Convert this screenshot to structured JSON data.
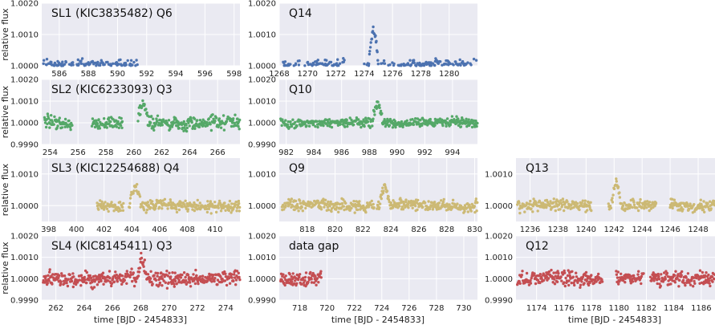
{
  "chart_data": {
    "type": "scatter",
    "x_label": "time [BJD - 2454833]",
    "y_label": "relative flux",
    "grid": true,
    "colors": {
      "SL1": "#4c72b0",
      "SL2": "#55a868",
      "SL3": "#ccb974",
      "SL4": "#c44e52",
      "background": "#eaeaf2"
    },
    "rows": [
      {
        "id": "SL1",
        "ylim": [
          1.0,
          1.002
        ],
        "yticks": [
          "1.0000",
          "1.0010",
          "1.0020"
        ],
        "panels": [
          {
            "title": "SL1 (KIC3835482) Q6",
            "xlim": [
              584.8,
              598.4
            ],
            "xticks": [
              586,
              588,
              590,
              592,
              594,
              596,
              598
            ],
            "segments": [
              [
                584.9,
                591.5
              ]
            ],
            "events": [
              [
                591.4,
                592.5,
                1.001
              ]
            ],
            "noise": 0.00011,
            "seed": 11
          },
          {
            "title": "Q14",
            "xlim": [
              1268,
              1282
            ],
            "xticks": [
              1268,
              1270,
              1272,
              1274,
              1276,
              1278,
              1280
            ],
            "segments": [
              [
                1268.2,
                1272.6
              ],
              [
                1274.0,
                1282.0
              ]
            ],
            "events": [
              [
                1274.3,
                1275.2,
                0.0011
              ]
            ],
            "noise": 0.00011,
            "seed": 12
          }
        ]
      },
      {
        "id": "SL2",
        "ylim": [
          0.999,
          1.002
        ],
        "yticks": [
          "0.9990",
          "1.0000",
          "1.0010",
          "1.0020"
        ],
        "panels": [
          {
            "title": "SL2 (KIC6233093) Q3",
            "xlim": [
              253.4,
              267.6
            ],
            "xticks": [
              254,
              256,
              258,
              260,
              262,
              264,
              266
            ],
            "segments": [
              [
                253.6,
                255.6
              ],
              [
                257.0,
                259.2
              ],
              [
                260.3,
                267.6
              ]
            ],
            "events": [
              [
                260.3,
                261.2,
                0.0008
              ]
            ],
            "noise": 0.0002,
            "seed": 21
          },
          {
            "title": "Q10",
            "xlim": [
              981.5,
              995.8
            ],
            "xticks": [
              982,
              984,
              986,
              988,
              990,
              992,
              994
            ],
            "segments": [
              [
                981.6,
                995.8
              ]
            ],
            "events": [
              [
                988.2,
                989.2,
                0.0009
              ]
            ],
            "noise": 0.00013,
            "seed": 22
          }
        ]
      },
      {
        "id": "SL3",
        "ylim": [
          0.9995,
          1.0015
        ],
        "yticks": [
          "1.0000",
          "1.0010"
        ],
        "panels": [
          {
            "title": "SL3 (KIC12254688) Q4",
            "xlim": [
              397.5,
              411.8
            ],
            "xticks": [
              398,
              400,
              402,
              404,
              406,
              408,
              410
            ],
            "segments": [
              [
                401.5,
                403.4
              ],
              [
                403.8,
                411.8
              ]
            ],
            "events": [
              [
                403.8,
                404.9,
                0.0006
              ]
            ],
            "noise": 0.00011,
            "seed": 31
          },
          {
            "title": "Q9",
            "xlim": [
              816,
              830.2
            ],
            "xticks": [
              818,
              820,
              822,
              824,
              826,
              828,
              830
            ],
            "segments": [
              [
                816.2,
                822.8
              ],
              [
                823.0,
                830.2
              ]
            ],
            "events": [
              [
                823.2,
                824.1,
                0.0006
              ]
            ],
            "noise": 0.00011,
            "seed": 32
          },
          {
            "title": "Q13",
            "xlim": [
              1235,
              1249.2
            ],
            "xticks": [
              1236,
              1238,
              1240,
              1242,
              1244,
              1246,
              1248
            ],
            "segments": [
              [
                1235.1,
                1240.4
              ],
              [
                1241.6,
                1245.0
              ],
              [
                1246.0,
                1249.2
              ]
            ],
            "events": [
              [
                1241.8,
                1242.7,
                0.0007
              ]
            ],
            "noise": 0.00011,
            "seed": 33
          }
        ]
      },
      {
        "id": "SL4",
        "ylim": [
          0.999,
          1.002
        ],
        "yticks": [
          "0.9990",
          "1.0000",
          "1.0010",
          "1.0020"
        ],
        "panels": [
          {
            "title": "SL4 (KIC8145411) Q3",
            "xlim": [
              261,
              275
            ],
            "xticks": [
              262,
              264,
              266,
              268,
              270,
              272,
              274
            ],
            "segments": [
              [
                261.1,
                275.0
              ]
            ],
            "events": [
              [
                267.7,
                268.6,
                0.0008
              ]
            ],
            "noise": 0.00022,
            "seed": 41
          },
          {
            "title": "data gap",
            "xlim": [
              716.5,
              731
            ],
            "xticks": [
              718,
              720,
              722,
              724,
              726,
              728,
              730
            ],
            "segments": [
              [
                716.6,
                719.6
              ]
            ],
            "events": [],
            "noise": 0.0002,
            "seed": 42
          },
          {
            "title": "Q12",
            "xlim": [
              1172.5,
              1187
            ],
            "xticks": [
              1174,
              1176,
              1178,
              1180,
              1182,
              1184,
              1186
            ],
            "segments": [
              [
                1172.6,
                1178.8
              ],
              [
                1179.8,
                1181.8
              ],
              [
                1182.3,
                1187.0
              ]
            ],
            "events": [
              [
                1178.8,
                1180.0,
                0.0008
              ]
            ],
            "noise": 0.0002,
            "seed": 43
          }
        ]
      }
    ]
  }
}
